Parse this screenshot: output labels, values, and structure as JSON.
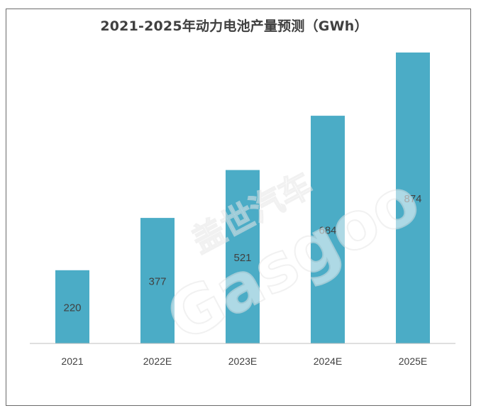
{
  "chart_data": {
    "type": "bar",
    "title": "2021-2025年动力电池产量预测（GWh）",
    "categories": [
      "2021",
      "2022E",
      "2023E",
      "2024E",
      "2025E"
    ],
    "values": [
      220,
      377,
      521,
      684,
      874
    ],
    "data_labels": [
      "220",
      "377",
      "521",
      "684",
      "874"
    ],
    "xlabel": "",
    "ylabel": "",
    "ylim": [
      0,
      920
    ],
    "grid": false,
    "legend": "none",
    "bar_color": "#4BACC6"
  },
  "watermark": {
    "brand_cn": "盖世汽车",
    "brand_en": "Gasgoo"
  }
}
